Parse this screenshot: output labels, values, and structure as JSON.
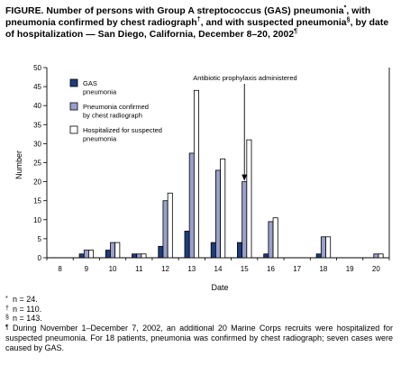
{
  "figure": {
    "title_parts": [
      "FIGURE. Number of persons with Group A streptococcus (GAS) pneumonia",
      "*",
      ", with pneumonia confirmed by chest radiograph",
      "†",
      ", and with suspected pneumonia",
      "§",
      ", by date of hospitalization — San Diego, California, December 8–20, 2002",
      "¶"
    ]
  },
  "chart_data": {
    "type": "bar",
    "xlabel": "Date",
    "ylabel": "Number",
    "ylim": [
      0,
      50
    ],
    "yticks": [
      0,
      5,
      10,
      15,
      20,
      25,
      30,
      35,
      40,
      45,
      50
    ],
    "categories": [
      "8",
      "9",
      "10",
      "11",
      "12",
      "13",
      "14",
      "15",
      "16",
      "17",
      "18",
      "19",
      "20"
    ],
    "series": [
      {
        "name": "GAS pneumonia",
        "legend_lines": [
          "GAS",
          "pneumonia"
        ],
        "color": "#1f3d7a",
        "values": [
          0,
          1,
          2,
          1,
          3,
          7,
          4,
          4,
          1,
          0,
          1,
          0,
          0
        ]
      },
      {
        "name": "Pneumonia confirmed by chest radiograph",
        "legend_lines": [
          "Pneumonia confirmed",
          "by chest radiograph"
        ],
        "color": "#9aa0cc",
        "values": [
          0,
          2,
          4,
          1,
          15,
          27.5,
          23,
          20,
          9.5,
          0,
          5.5,
          0,
          1
        ]
      },
      {
        "name": "Hospitalized for suspected pneumonia",
        "legend_lines": [
          "Hospitalized for suspected",
          "pneumonia"
        ],
        "color": "#ffffff",
        "values": [
          0,
          2,
          4,
          1,
          17,
          44,
          26,
          31,
          10.5,
          0,
          5.5,
          0,
          1
        ]
      }
    ],
    "annotation": {
      "text": "Antibiotic prophylaxis administered",
      "category": "15",
      "series_index": 1
    },
    "legend_position": "top-left",
    "grid": false
  },
  "footnotes": [
    {
      "mark": "*",
      "text": "n = 24."
    },
    {
      "mark": "†",
      "text": "n = 110."
    },
    {
      "mark": "§",
      "text": "n = 143."
    },
    {
      "mark": "¶",
      "text": "During November 1–December 7, 2002, an additional 20 Marine Corps recruits were hospitalized for suspected pneumonia. For 18 patients, pneumonia was confirmed by chest radiograph; seven cases were caused by GAS."
    }
  ]
}
